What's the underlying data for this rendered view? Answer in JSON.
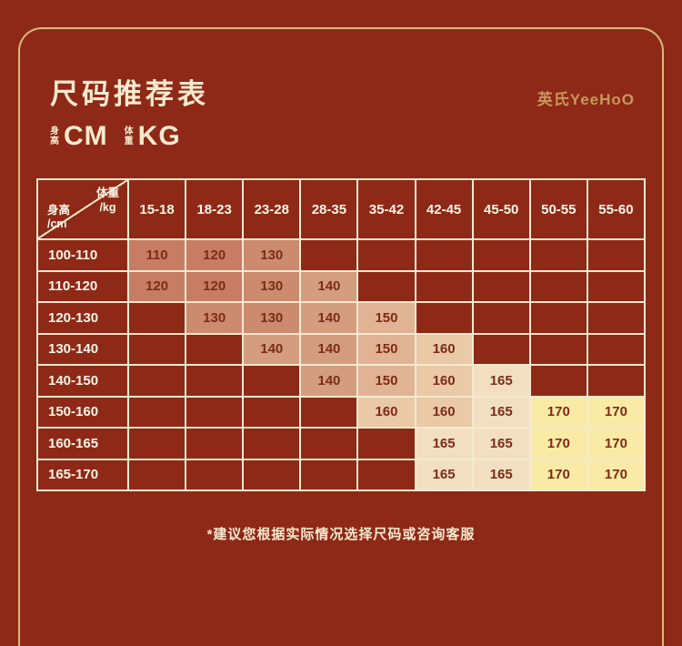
{
  "header": {
    "title": "尺码推荐表",
    "brand": "英氏YeeHoO",
    "height_unit_label": "身高",
    "height_unit_value": "CM",
    "weight_unit_label": "体重",
    "weight_unit_value": "KG"
  },
  "footer": {
    "note": "*建议您根据实际情况选择尺码或咨询客服"
  },
  "chart_data": {
    "type": "table",
    "corner": {
      "top": "体重\n/kg",
      "bottom": "身高\n/cm"
    },
    "weight_columns": [
      "15-18",
      "18-23",
      "23-28",
      "28-35",
      "35-42",
      "42-45",
      "45-50",
      "50-55",
      "55-60"
    ],
    "height_rows": [
      "100-110",
      "110-120",
      "120-130",
      "130-140",
      "140-150",
      "150-160",
      "160-165",
      "165-170"
    ],
    "cells": [
      [
        "110",
        "120",
        "130",
        "",
        "",
        "",
        "",
        "",
        ""
      ],
      [
        "120",
        "120",
        "130",
        "140",
        "",
        "",
        "",
        "",
        ""
      ],
      [
        "",
        "130",
        "130",
        "140",
        "150",
        "",
        "",
        "",
        ""
      ],
      [
        "",
        "",
        "140",
        "140",
        "150",
        "160",
        "",
        "",
        ""
      ],
      [
        "",
        "",
        "",
        "140",
        "150",
        "160",
        "165",
        "",
        ""
      ],
      [
        "",
        "",
        "",
        "",
        "160",
        "160",
        "165",
        "170",
        "170"
      ],
      [
        "",
        "",
        "",
        "",
        "",
        "165",
        "165",
        "170",
        "170"
      ],
      [
        "",
        "",
        "",
        "",
        "",
        "165",
        "165",
        "170",
        "170"
      ]
    ],
    "size_colors": {
      "110": "#C67D63",
      "120": "#C67D63",
      "130": "#CC8A6F",
      "140": "#D59D80",
      "150": "#DFB394",
      "160": "#E9C9A6",
      "165": "#F2DFC1",
      "170": "#F9EBA5"
    }
  },
  "colors": {
    "background": "#8E2917",
    "frame_line": "#D9B97B",
    "cream_text": "#F7EACE",
    "table_border": "#F5E9CF",
    "header_text": "#FCF5E6",
    "cell_text": "#7D2B16",
    "brand_gold": "#C8995B"
  }
}
